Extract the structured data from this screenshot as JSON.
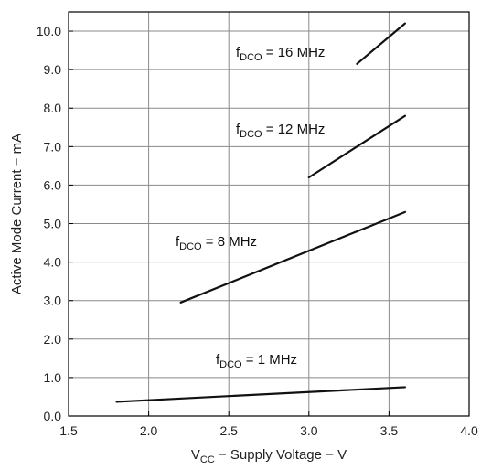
{
  "chart_data": {
    "type": "line",
    "title": "",
    "xlabel": {
      "main": "V",
      "sub": "CC",
      "rest": " − Supply Voltage − V"
    },
    "ylabel": "Active Mode Current − mA",
    "xlim": [
      1.5,
      4.0
    ],
    "ylim": [
      0.0,
      10.5
    ],
    "x_ticks": [
      1.5,
      2.0,
      2.5,
      3.0,
      3.5,
      4.0
    ],
    "x_tick_labels": [
      "1.5",
      "2.0",
      "2.5",
      "3.0",
      "3.5",
      "4.0"
    ],
    "y_ticks": [
      0,
      1,
      2,
      3,
      4,
      5,
      6,
      7,
      8,
      9,
      10
    ],
    "y_tick_labels": [
      "0.0",
      "1.0",
      "2.0",
      "3.0",
      "4.0",
      "5.0",
      "6.0",
      "7.0",
      "8.0",
      "9.0",
      "10.0"
    ],
    "grid": true,
    "series": [
      {
        "label": {
          "main": "f",
          "sub": "DCO",
          "rest": " = 16 MHz"
        },
        "x": [
          3.3,
          3.6
        ],
        "y": [
          9.15,
          10.2
        ]
      },
      {
        "label": {
          "main": "f",
          "sub": "DCO",
          "rest": " = 12 MHz"
        },
        "x": [
          3.0,
          3.6
        ],
        "y": [
          6.2,
          7.8
        ]
      },
      {
        "label": {
          "main": "f",
          "sub": "DCO",
          "rest": " = 8 MHz"
        },
        "x": [
          2.2,
          3.6
        ],
        "y": [
          2.95,
          5.3
        ]
      },
      {
        "label": {
          "main": "f",
          "sub": "DCO",
          "rest": " = 1 MHz"
        },
        "x": [
          1.8,
          3.6
        ],
        "y": [
          0.37,
          0.75
        ]
      }
    ]
  }
}
